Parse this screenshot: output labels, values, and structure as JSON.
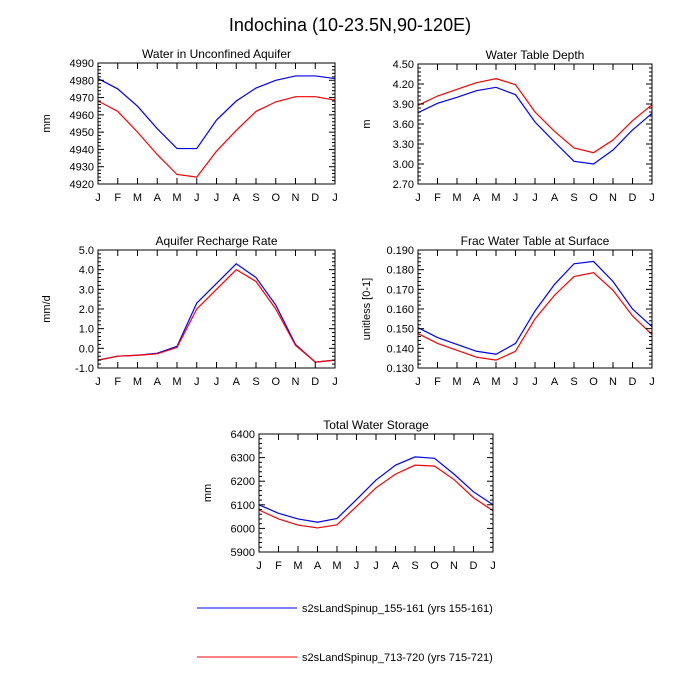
{
  "figure_title": "Indochina (10-23.5N,90-120E)",
  "chart_data": [
    {
      "type": "line",
      "title": "Water in Unconfined Aquifer",
      "xlabel": "",
      "ylabel": "mm",
      "categories": [
        "J",
        "F",
        "M",
        "A",
        "M",
        "J",
        "J",
        "A",
        "S",
        "O",
        "N",
        "D",
        "J"
      ],
      "yticks": [
        "4920",
        "4930",
        "4940",
        "4950",
        "4960",
        "4970",
        "4980",
        "4990"
      ],
      "ylim": [
        4920,
        4990
      ],
      "series": [
        {
          "name": "s2sLandSpinup_155-161 (yrs 155-161)",
          "color": "#0000ff",
          "values": [
            4981,
            4975,
            4965,
            4952,
            4940.5,
            4940.5,
            4957,
            4968,
            4975.5,
            4980,
            4982.5,
            4982.5,
            4981
          ]
        },
        {
          "name": "s2sLandSpinup_713-720 (yrs 715-721)",
          "color": "#ff0000",
          "values": [
            4968,
            4962,
            4950,
            4937,
            4925.5,
            4924,
            4939,
            4951,
            4962,
            4967.5,
            4970.5,
            4970.5,
            4968.5
          ]
        }
      ]
    },
    {
      "type": "line",
      "title": "Water Table Depth",
      "xlabel": "",
      "ylabel": "m",
      "categories": [
        "J",
        "F",
        "M",
        "A",
        "M",
        "J",
        "J",
        "A",
        "S",
        "O",
        "N",
        "D",
        "J"
      ],
      "yticks": [
        "2.70",
        "3.00",
        "3.30",
        "3.60",
        "3.90",
        "4.20",
        "4.50"
      ],
      "ylim": [
        2.7,
        4.5
      ],
      "series": [
        {
          "name": "s2sLandSpinup_155-161 (yrs 155-161)",
          "color": "#0000ff",
          "values": [
            3.77,
            3.91,
            4.0,
            4.1,
            4.15,
            4.04,
            3.63,
            3.33,
            3.04,
            3.0,
            3.21,
            3.51,
            3.76
          ]
        },
        {
          "name": "s2sLandSpinup_713-720 (yrs 715-721)",
          "color": "#ff0000",
          "values": [
            3.88,
            4.02,
            4.12,
            4.22,
            4.28,
            4.19,
            3.78,
            3.49,
            3.24,
            3.17,
            3.36,
            3.65,
            3.89
          ]
        }
      ]
    },
    {
      "type": "line",
      "title": "Aquifer Recharge Rate",
      "xlabel": "",
      "ylabel": "mm/d",
      "categories": [
        "J",
        "F",
        "M",
        "A",
        "M",
        "J",
        "J",
        "A",
        "S",
        "O",
        "N",
        "D",
        "J"
      ],
      "yticks": [
        "-1.0",
        "0.0",
        "1.0",
        "2.0",
        "3.0",
        "4.0",
        "5.0"
      ],
      "ylim": [
        -1.0,
        5.0
      ],
      "series": [
        {
          "name": "s2sLandSpinup_155-161 (yrs 155-161)",
          "color": "#0000ff",
          "values": [
            -0.6,
            -0.4,
            -0.35,
            -0.25,
            0.1,
            2.3,
            3.3,
            4.3,
            3.6,
            2.2,
            0.2,
            -0.7,
            -0.6
          ]
        },
        {
          "name": "s2sLandSpinup_713-720 (yrs 715-721)",
          "color": "#ff0000",
          "values": [
            -0.6,
            -0.4,
            -0.35,
            -0.28,
            0.05,
            2.0,
            3.0,
            4.0,
            3.4,
            2.0,
            0.15,
            -0.7,
            -0.6
          ]
        }
      ]
    },
    {
      "type": "line",
      "title": "Frac Water Table at Surface",
      "xlabel": "",
      "ylabel": "unitless [0-1]",
      "categories": [
        "J",
        "F",
        "M",
        "A",
        "M",
        "J",
        "J",
        "A",
        "S",
        "O",
        "N",
        "D",
        "J"
      ],
      "yticks": [
        "0.130",
        "0.140",
        "0.150",
        "0.160",
        "0.170",
        "0.180",
        "0.190"
      ],
      "ylim": [
        0.13,
        0.19
      ],
      "series": [
        {
          "name": "s2sLandSpinup_155-161 (yrs 155-161)",
          "color": "#0000ff",
          "values": [
            0.1505,
            0.1455,
            0.142,
            0.1385,
            0.137,
            0.1425,
            0.159,
            0.1725,
            0.183,
            0.1842,
            0.174,
            0.16,
            0.151
          ]
        },
        {
          "name": "s2sLandSpinup_713-720 (yrs 715-721)",
          "color": "#ff0000",
          "values": [
            0.1475,
            0.1425,
            0.139,
            0.1355,
            0.134,
            0.1385,
            0.155,
            0.167,
            0.1765,
            0.1785,
            0.1695,
            0.1565,
            0.147
          ]
        }
      ]
    },
    {
      "type": "line",
      "title": "Total Water Storage",
      "xlabel": "",
      "ylabel": "mm",
      "categories": [
        "J",
        "F",
        "M",
        "A",
        "M",
        "J",
        "J",
        "A",
        "S",
        "O",
        "N",
        "D",
        "J"
      ],
      "yticks": [
        "5900",
        "6000",
        "6100",
        "6200",
        "6300",
        "6400"
      ],
      "ylim": [
        5900,
        6400
      ],
      "series": [
        {
          "name": "s2sLandSpinup_155-161 (yrs 155-161)",
          "color": "#0000ff",
          "values": [
            6100,
            6064,
            6040,
            6026,
            6042,
            6122,
            6205,
            6268,
            6303,
            6297,
            6230,
            6155,
            6100
          ]
        },
        {
          "name": "s2sLandSpinup_713-720 (yrs 715-721)",
          "color": "#ff0000",
          "values": [
            6078,
            6040,
            6014,
            6002,
            6015,
            6093,
            6172,
            6230,
            6268,
            6264,
            6207,
            6130,
            6075
          ]
        }
      ]
    }
  ],
  "legend": [
    {
      "label": "s2sLandSpinup_155-161 (yrs 155-161)",
      "color": "#0000ff"
    },
    {
      "label": "s2sLandSpinup_713-720 (yrs 715-721)",
      "color": "#ff0000"
    }
  ]
}
